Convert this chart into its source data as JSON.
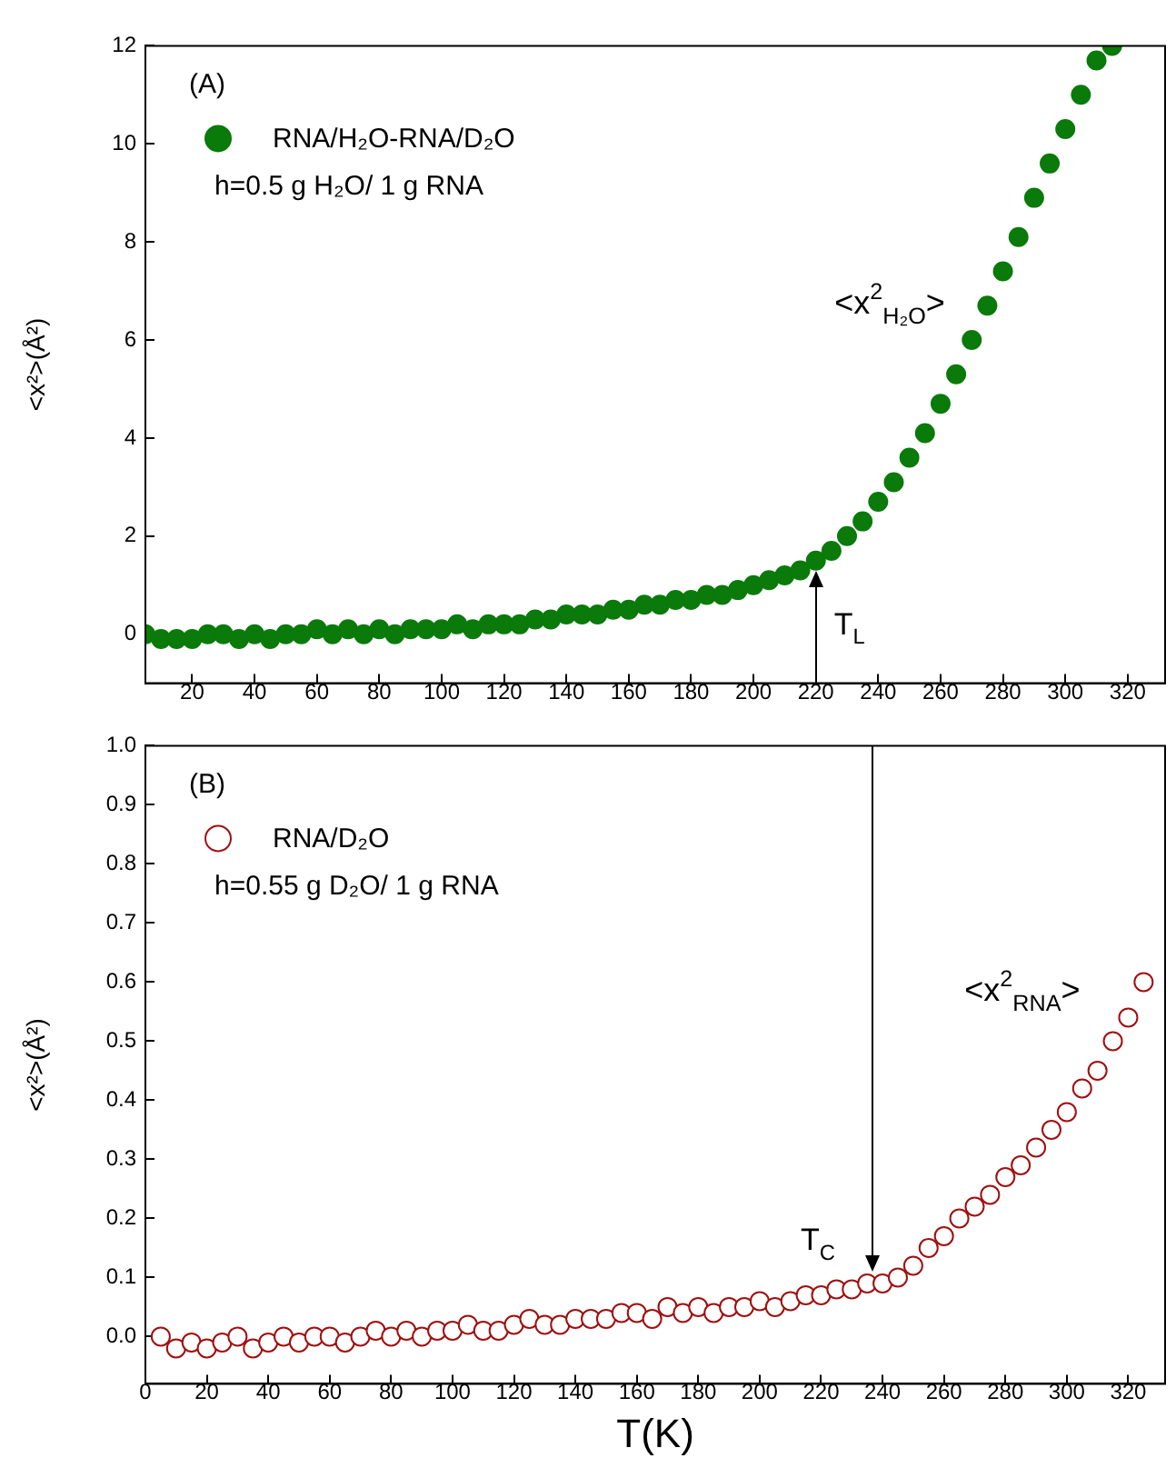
{
  "chart_data": [
    {
      "type": "scatter",
      "ylabel": "<x²>(Å²)",
      "legend": "top left",
      "marker": "circle",
      "annotations": [
        "(A)",
        "h=0.5 g H₂O/ 1 g RNA",
        {
          "text": "T$_{L}$",
          "x": 220,
          "y": 1.4
        },
        "<x$^{2}$$_{H₂O}$>"
      ],
      "xlim": [
        5,
        332
      ],
      "xticks": [
        20,
        40,
        60,
        80,
        100,
        120,
        140,
        160,
        180,
        200,
        220,
        240,
        260,
        280,
        300,
        320
      ],
      "ylim": [
        -1,
        12
      ],
      "yticks": [
        0,
        2,
        4,
        6,
        8,
        10,
        12
      ],
      "series": [
        {
          "name": "RNA/H₂O-RNA/D₂O",
          "color": "#0a7a0a",
          "x": [
            5,
            10,
            15,
            20,
            25,
            30,
            35,
            40,
            45,
            50,
            55,
            60,
            65,
            70,
            75,
            80,
            85,
            90,
            95,
            100,
            105,
            110,
            115,
            120,
            125,
            130,
            135,
            140,
            145,
            150,
            155,
            160,
            165,
            170,
            175,
            180,
            185,
            190,
            195,
            200,
            205,
            210,
            215,
            220,
            225,
            230,
            235,
            240,
            245,
            250,
            255,
            260,
            265,
            270,
            275,
            280,
            285,
            290,
            295,
            300,
            305,
            310,
            315
          ],
          "values": [
            0,
            -0.1,
            -0.1,
            -0.1,
            0,
            0,
            -0.1,
            0,
            -0.1,
            0,
            0,
            0.1,
            0,
            0.1,
            0,
            0.1,
            0,
            0.1,
            0.1,
            0.1,
            0.2,
            0.1,
            0.2,
            0.2,
            0.2,
            0.3,
            0.3,
            0.4,
            0.4,
            0.4,
            0.5,
            0.5,
            0.6,
            0.6,
            0.7,
            0.7,
            0.8,
            0.8,
            0.9,
            1.0,
            1.1,
            1.2,
            1.3,
            1.5,
            1.7,
            2.0,
            2.3,
            2.7,
            3.1,
            3.6,
            4.1,
            4.7,
            5.3,
            6.0,
            6.7,
            7.4,
            8.1,
            8.9,
            9.6,
            10.3,
            11.0,
            11.7,
            12.0
          ]
        }
      ]
    },
    {
      "type": "scatter",
      "xlabel": "T(K)",
      "ylabel": "<x²>(Å²)",
      "legend": "top left",
      "marker": "circle",
      "annotations": [
        "(B)",
        "h=0.55 g D₂O/ 1 g RNA",
        {
          "text": "T$_{C}$",
          "x": 237,
          "y": 0.1
        },
        "<x$^{2}$$_{RNA}$>"
      ],
      "xlim": [
        0,
        332
      ],
      "xticks": [
        0,
        20,
        40,
        60,
        80,
        100,
        120,
        140,
        160,
        180,
        200,
        220,
        240,
        260,
        280,
        300,
        320
      ],
      "ylim": [
        -0.08,
        1.0
      ],
      "yticks": [
        {
          "value": 0,
          "label": "0.0"
        },
        {
          "value": 0.1,
          "label": "0.1"
        },
        {
          "value": 0.2,
          "label": "0.2"
        },
        {
          "value": 0.3,
          "label": "0.3"
        },
        {
          "value": 0.4,
          "label": "0.4"
        },
        {
          "value": 0.5,
          "label": "0.5"
        },
        {
          "value": 0.6,
          "label": "0.6"
        },
        {
          "value": 0.7,
          "label": "0.7"
        },
        {
          "value": 0.8,
          "label": "0.8"
        },
        {
          "value": 0.9,
          "label": "0.9"
        },
        {
          "value": 1.0,
          "label": "1.0"
        }
      ],
      "series": [
        {
          "name": "RNA/D₂O",
          "color": "#a01010",
          "x": [
            5,
            10,
            15,
            20,
            25,
            30,
            35,
            40,
            45,
            50,
            55,
            60,
            65,
            70,
            75,
            80,
            85,
            90,
            95,
            100,
            105,
            110,
            115,
            120,
            125,
            130,
            135,
            140,
            145,
            150,
            155,
            160,
            165,
            170,
            175,
            180,
            185,
            190,
            195,
            200,
            205,
            210,
            215,
            220,
            225,
            230,
            235,
            240,
            245,
            250,
            255,
            260,
            265,
            270,
            275,
            280,
            285,
            290,
            295,
            300,
            305,
            310,
            315,
            320,
            325
          ],
          "values": [
            0.0,
            -0.02,
            -0.01,
            -0.02,
            -0.01,
            0,
            -0.02,
            -0.01,
            0,
            -0.01,
            0,
            0,
            -0.01,
            0,
            0.01,
            0,
            0.01,
            0,
            0.01,
            0.01,
            0.02,
            0.01,
            0.01,
            0.02,
            0.03,
            0.02,
            0.02,
            0.03,
            0.03,
            0.03,
            0.04,
            0.04,
            0.03,
            0.05,
            0.04,
            0.05,
            0.04,
            0.05,
            0.05,
            0.06,
            0.05,
            0.06,
            0.07,
            0.07,
            0.08,
            0.08,
            0.09,
            0.09,
            0.1,
            0.12,
            0.15,
            0.17,
            0.2,
            0.22,
            0.24,
            0.27,
            0.29,
            0.32,
            0.35,
            0.38,
            0.42,
            0.45,
            0.5,
            0.54,
            0.6
          ]
        }
      ]
    }
  ]
}
